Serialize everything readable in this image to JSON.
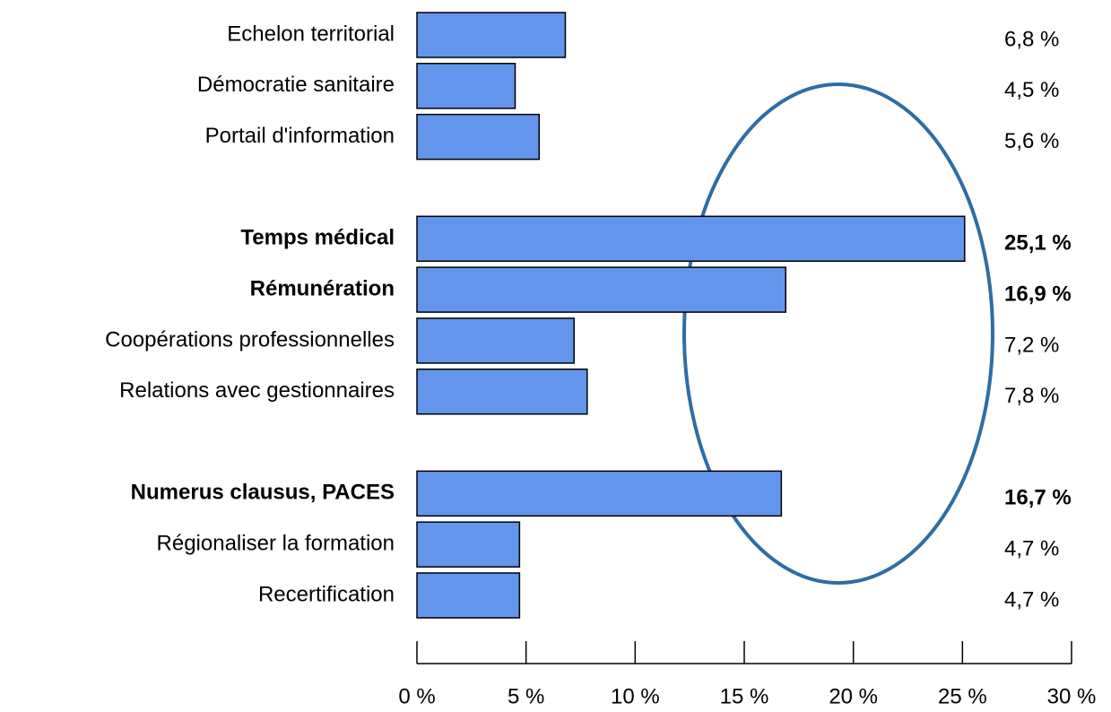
{
  "chart_data": {
    "type": "barh",
    "categories": [
      "Echelon territorial",
      "Démocratie sanitaire",
      "Portail d'information",
      null,
      "Temps médical",
      "Rémunération",
      "Coopérations professionnelles",
      "Relations avec gestionnaires",
      null,
      "Numerus clausus, PACES",
      "Régionaliser la formation",
      "Recertification"
    ],
    "values": [
      6.8,
      4.5,
      5.6,
      null,
      25.1,
      16.9,
      7.2,
      7.8,
      null,
      16.7,
      4.7,
      4.7
    ],
    "value_labels": [
      "6,8 %",
      "4,5 %",
      "5,6 %",
      null,
      "25,1 %",
      "16,9 %",
      "7,2 %",
      "7,8 %",
      null,
      "16,7 %",
      "4,7 %",
      "4,7 %"
    ],
    "emphasis": [
      false,
      false,
      false,
      null,
      true,
      true,
      false,
      false,
      null,
      true,
      false,
      false
    ],
    "color": "#6495ed",
    "xlim": [
      0,
      30
    ],
    "xticks": [
      {
        "value": 0,
        "label": "0 %"
      },
      {
        "value": 5,
        "label": "5 %"
      },
      {
        "value": 10,
        "label": "10 %"
      },
      {
        "value": 15,
        "label": "15 %"
      },
      {
        "value": 20,
        "label": "20 %"
      },
      {
        "value": 25,
        "label": "25 %"
      },
      {
        "value": 30,
        "label": "30 %"
      }
    ],
    "grid": false
  }
}
